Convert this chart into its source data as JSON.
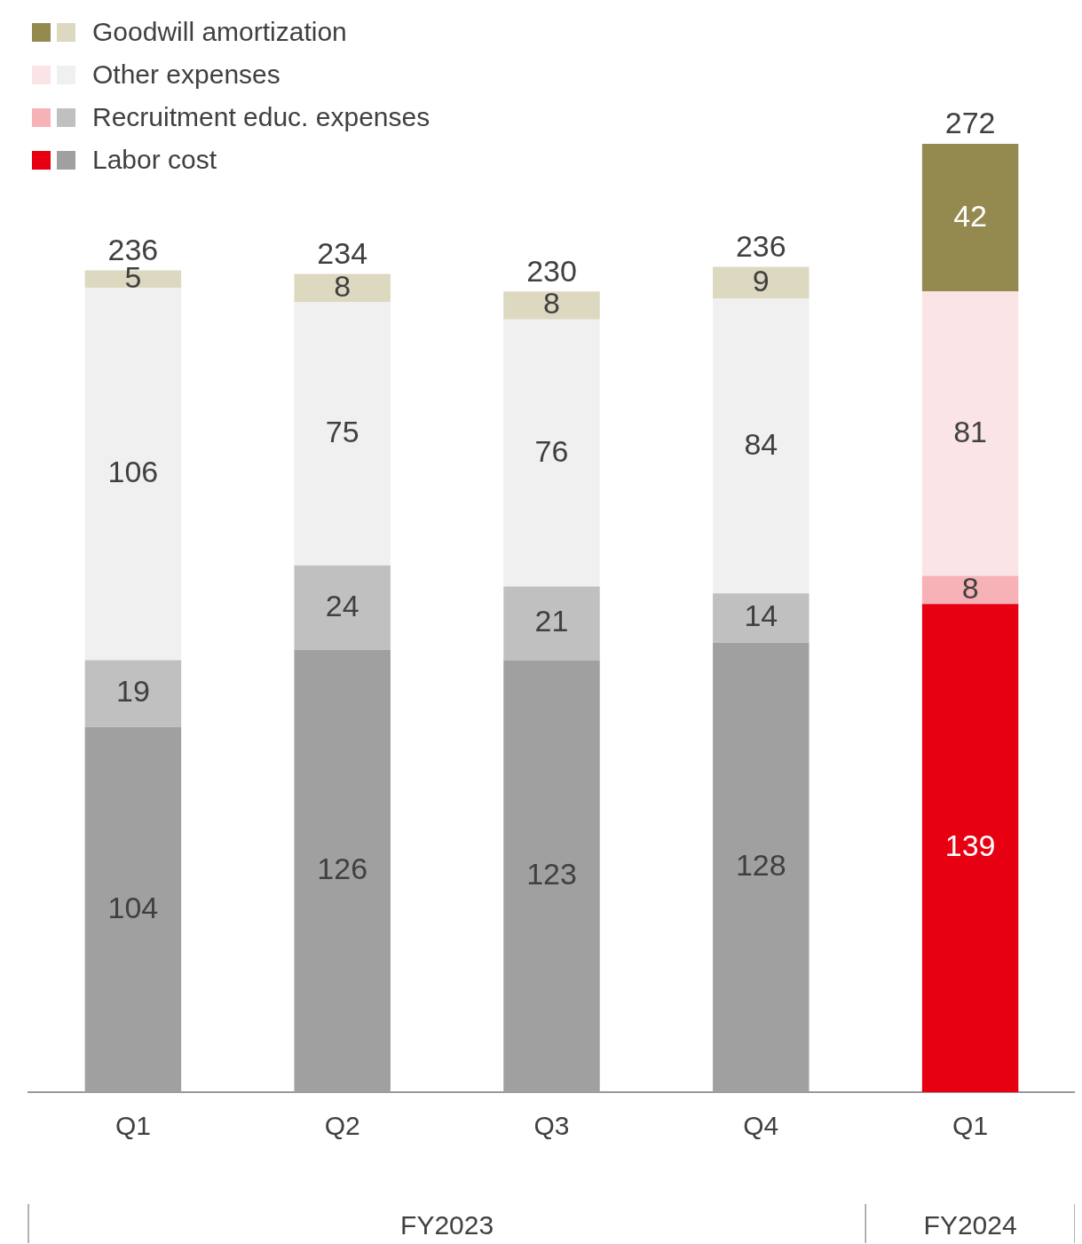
{
  "chart_data": {
    "type": "bar",
    "stacked": true,
    "categories": [
      "Q1",
      "Q2",
      "Q3",
      "Q4",
      "Q1"
    ],
    "series": [
      {
        "name": "Labor cost",
        "colors": [
          "#a0a0a0",
          "#a0a0a0",
          "#a0a0a0",
          "#a0a0a0",
          "#e60012"
        ],
        "values": [
          104,
          126,
          123,
          128,
          139
        ]
      },
      {
        "name": "Recruitment educ. expenses",
        "colors": [
          "#c0c0c0",
          "#c0c0c0",
          "#c0c0c0",
          "#c0c0c0",
          "#f7b2b7"
        ],
        "values": [
          19,
          24,
          21,
          14,
          8
        ]
      },
      {
        "name": "Other expenses",
        "colors": [
          "#f0f0f0",
          "#f0f0f0",
          "#f0f0f0",
          "#f0f0f0",
          "#fbe4e6"
        ],
        "values": [
          106,
          75,
          76,
          84,
          81
        ]
      },
      {
        "name": "Goodwill amortization",
        "colors": [
          "#ddd8c0",
          "#ddd8c0",
          "#ddd8c0",
          "#ddd8c0",
          "#948a50"
        ],
        "values": [
          5,
          8,
          8,
          9,
          42
        ]
      }
    ],
    "data_labels": true,
    "totals": [
      "236",
      "234",
      "230",
      "236",
      "272"
    ],
    "annotations": [
      "FY2023",
      "FY2024"
    ],
    "legend": "top left",
    "grid": false
  }
}
